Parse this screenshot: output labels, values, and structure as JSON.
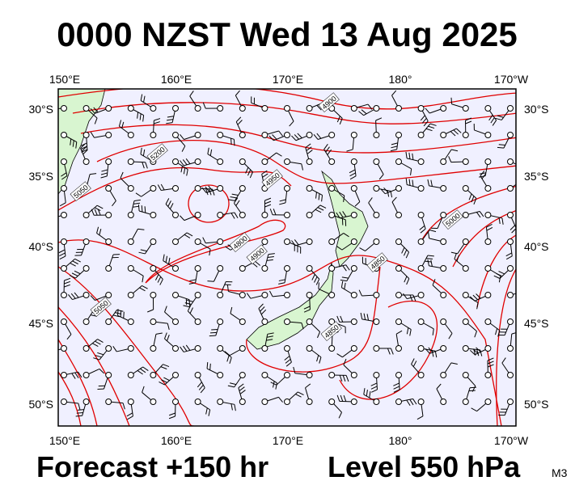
{
  "header": {
    "title": "0000 NZST Wed 13 Aug 2025"
  },
  "map": {
    "top_labels": [
      "150°E",
      "160°E",
      "170°E",
      "180°",
      "170°W"
    ],
    "bottom_labels": [
      "150°E",
      "160°E",
      "170°E",
      "180°",
      "170°W"
    ],
    "left_labels": [
      "30°S",
      "35°S",
      "40°S",
      "45°S",
      "50°S"
    ],
    "right_labels": [
      "30°S",
      "35°S",
      "40°S",
      "45°S",
      "50°S"
    ],
    "contour_labels": [
      "4900",
      "5200",
      "5050",
      "4950",
      "4800",
      "4900",
      "4850",
      "5050",
      "4850",
      "5000"
    ]
  },
  "footer": {
    "forecast": "Forecast +150 hr",
    "level": "Level 550 hPa",
    "model": "M3"
  }
}
